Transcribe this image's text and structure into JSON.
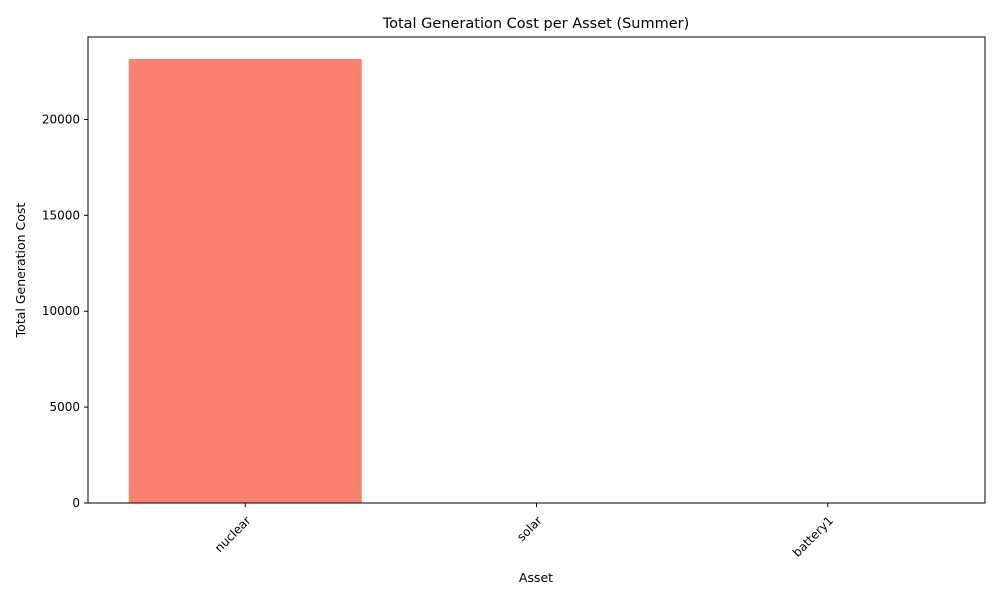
{
  "chart_data": {
    "type": "bar",
    "title": "Total Generation Cost per Asset (Summer)",
    "xlabel": "Asset",
    "ylabel": "Total Generation Cost",
    "categories": [
      "nuclear",
      "solar",
      "battery1"
    ],
    "values": [
      23150,
      0,
      0
    ],
    "ylim": [
      0,
      24300
    ],
    "yticks": [
      0,
      5000,
      10000,
      15000,
      20000
    ],
    "ytick_labels": [
      "0",
      "5000",
      "10000",
      "15000",
      "20000"
    ],
    "bar_color": "#fa8072",
    "grid": false,
    "legend": "none",
    "xtick_rotation_deg": 45
  }
}
